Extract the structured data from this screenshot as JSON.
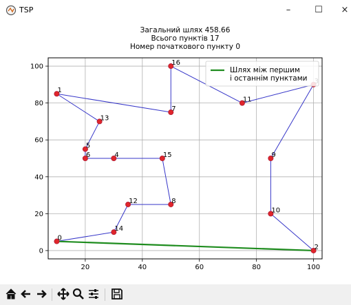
{
  "window": {
    "title": "TSP",
    "minimize_glyph": "–",
    "maximize_glyph": "☐",
    "close_glyph": "×"
  },
  "plot": {
    "title_lines": [
      "Загальний шлях 458.66",
      "Всього пунктів 17",
      "Номер початкового пункту 0"
    ],
    "legend_label_lines": [
      "Шлях між першим",
      "і останнім пунктами"
    ]
  },
  "chart_data": {
    "type": "line",
    "title": "Загальний шлях 458.66\nВсього пунктів 17\nНомер початкового пункту 0",
    "xlim": [
      7,
      103
    ],
    "ylim": [
      -4.5,
      104.5
    ],
    "xticks": [
      20,
      40,
      60,
      80,
      100
    ],
    "yticks": [
      0,
      20,
      40,
      60,
      80,
      100
    ],
    "grid": true,
    "legend_position": "top-right",
    "points": [
      {
        "id": "0",
        "x": 10,
        "y": 5
      },
      {
        "id": "1",
        "x": 10,
        "y": 85
      },
      {
        "id": "2",
        "x": 100,
        "y": 0
      },
      {
        "id": "3",
        "x": 100,
        "y": 90
      },
      {
        "id": "4",
        "x": 30,
        "y": 50
      },
      {
        "id": "5",
        "x": 20,
        "y": 55
      },
      {
        "id": "6",
        "x": 20,
        "y": 50
      },
      {
        "id": "7",
        "x": 50,
        "y": 75
      },
      {
        "id": "8",
        "x": 50,
        "y": 25
      },
      {
        "id": "9",
        "x": 85,
        "y": 50
      },
      {
        "id": "10",
        "x": 85,
        "y": 20
      },
      {
        "id": "11",
        "x": 75,
        "y": 80
      },
      {
        "id": "12",
        "x": 35,
        "y": 25
      },
      {
        "id": "13",
        "x": 25,
        "y": 70
      },
      {
        "id": "14",
        "x": 30,
        "y": 10
      },
      {
        "id": "15",
        "x": 47,
        "y": 50
      },
      {
        "id": "16",
        "x": 50,
        "y": 100
      }
    ],
    "route": [
      "0",
      "14",
      "12",
      "8",
      "15",
      "4",
      "6",
      "5",
      "13",
      "1",
      "7",
      "16",
      "11",
      "3",
      "9",
      "10",
      "2"
    ],
    "closing_segment": {
      "name": "Шлях між першим і останнім пунктами",
      "from": "2",
      "to": "0"
    },
    "colors": {
      "route": "#3535c8",
      "closing": "#1e8c1e",
      "points": "#e0262b",
      "point_edge": "#b01a35"
    }
  },
  "toolbar": {
    "buttons": [
      "home-icon",
      "back-icon",
      "forward-icon",
      "pan-icon",
      "zoom-icon",
      "configure-subplots-icon",
      "save-icon"
    ]
  }
}
